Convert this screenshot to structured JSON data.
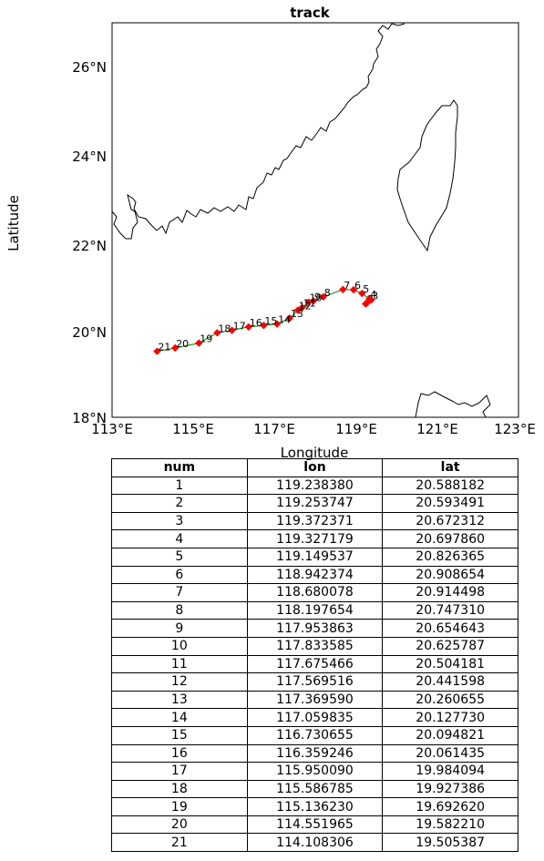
{
  "title": "track",
  "xlabel": "Longitude",
  "ylabel": "Latitude",
  "x_ticks": [
    "113°E",
    "115°E",
    "117°E",
    "119°E",
    "121°E",
    "123°E"
  ],
  "y_ticks": [
    "18°N",
    "20°N",
    "22°N",
    "24°N",
    "26°N"
  ],
  "colors": {
    "track_line": "#008000",
    "marker": "#ff0000",
    "coast": "#000000"
  },
  "chart_data": {
    "type": "scatter",
    "title": "track",
    "xlabel": "Longitude",
    "ylabel": "Latitude",
    "xlim": [
      113,
      123
    ],
    "ylim": [
      18,
      27
    ],
    "grid": false,
    "points": [
      {
        "num": "1",
        "lon": 119.23838,
        "lat": 20.588182
      },
      {
        "num": "2",
        "lon": 119.253747,
        "lat": 20.593491
      },
      {
        "num": "3",
        "lon": 119.372371,
        "lat": 20.672312
      },
      {
        "num": "4",
        "lon": 119.327179,
        "lat": 20.69786
      },
      {
        "num": "5",
        "lon": 119.149537,
        "lat": 20.826365
      },
      {
        "num": "6",
        "lon": 118.942374,
        "lat": 20.908654
      },
      {
        "num": "7",
        "lon": 118.680078,
        "lat": 20.914498
      },
      {
        "num": "8",
        "lon": 118.197654,
        "lat": 20.74731
      },
      {
        "num": "9",
        "lon": 117.953863,
        "lat": 20.654643
      },
      {
        "num": "10",
        "lon": 117.833585,
        "lat": 20.625787
      },
      {
        "num": "11",
        "lon": 117.675466,
        "lat": 20.504181
      },
      {
        "num": "12",
        "lon": 117.569516,
        "lat": 20.441598
      },
      {
        "num": "13",
        "lon": 117.36959,
        "lat": 20.260655
      },
      {
        "num": "14",
        "lon": 117.059835,
        "lat": 20.12773
      },
      {
        "num": "15",
        "lon": 116.730655,
        "lat": 20.094821
      },
      {
        "num": "16",
        "lon": 116.359246,
        "lat": 20.061435
      },
      {
        "num": "17",
        "lon": 115.95009,
        "lat": 19.984094
      },
      {
        "num": "18",
        "lon": 115.586785,
        "lat": 19.927386
      },
      {
        "num": "19",
        "lon": 115.13623,
        "lat": 19.69262
      },
      {
        "num": "20",
        "lon": 114.551965,
        "lat": 19.58221
      },
      {
        "num": "21",
        "lon": 114.108306,
        "lat": 19.505387
      }
    ]
  },
  "table": {
    "headers": [
      "num",
      "lon",
      "lat"
    ],
    "rows": [
      [
        "1",
        "119.238380",
        "20.588182"
      ],
      [
        "2",
        "119.253747",
        "20.593491"
      ],
      [
        "3",
        "119.372371",
        "20.672312"
      ],
      [
        "4",
        "119.327179",
        "20.697860"
      ],
      [
        "5",
        "119.149537",
        "20.826365"
      ],
      [
        "6",
        "118.942374",
        "20.908654"
      ],
      [
        "7",
        "118.680078",
        "20.914498"
      ],
      [
        "8",
        "118.197654",
        "20.747310"
      ],
      [
        "9",
        "117.953863",
        "20.654643"
      ],
      [
        "10",
        "117.833585",
        "20.625787"
      ],
      [
        "11",
        "117.675466",
        "20.504181"
      ],
      [
        "12",
        "117.569516",
        "20.441598"
      ],
      [
        "13",
        "117.369590",
        "20.260655"
      ],
      [
        "14",
        "117.059835",
        "20.127730"
      ],
      [
        "15",
        "116.730655",
        "20.094821"
      ],
      [
        "16",
        "116.359246",
        "20.061435"
      ],
      [
        "17",
        "115.950090",
        "19.984094"
      ],
      [
        "18",
        "115.586785",
        "19.927386"
      ],
      [
        "19",
        "115.136230",
        "19.692620"
      ],
      [
        "20",
        "114.551965",
        "19.582210"
      ],
      [
        "21",
        "114.108306",
        "19.505387"
      ]
    ]
  }
}
